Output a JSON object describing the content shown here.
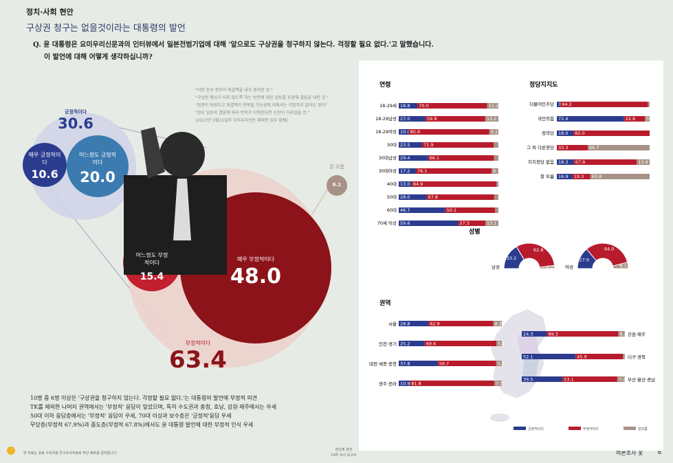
{
  "header": {
    "section": "정치·사회 현안",
    "title": "구상권 청구는 없을것이라는 대통령의 발언",
    "question_prefix": "Q.",
    "question_line1": "윤 대통령은 요미우리신문과의 인터뷰에서 일본전범기업에 대해 '앞으로도 구상권을 청구하지 않는다. 걱정할 필요 없다.'고 말했습니다.",
    "question_line2": "이 발언에 대해 어떻게 생각하십니까?"
  },
  "quote": [
    "\"어떤 한국 정부의 해결책을 내가 생각한 것.\"",
    "\"구상권 행사가 되지 않도록 하는 방안에 대한 검토를 포함해 결론을 내린 것.\"",
    "\"정권이 바뀐다고 해결책이 번복될 가능성에 대해서는 걱정하지 않아도 된다\"",
    "\"정부 입장과 결론에 따라 번복가 이뤄진다면 논란이 가라앉을 것.\"",
    "(2023년 3월15일자 요미우리신문 해외판 일부 발췌)"
  ],
  "bubbles": {
    "positive_label": "긍정적이다",
    "positive_value": "30.6",
    "very_positive_label": "매우 긍정적이다",
    "very_positive_value": "10.6",
    "somewhat_positive_label": "어느정도 긍정적이다",
    "somewhat_positive_value": "20.0",
    "negative_label": "부정적이다",
    "negative_value": "63.4",
    "very_negative_label": "매우 부정적이다",
    "very_negative_value": "48.0",
    "somewhat_negative_label": "어느정도 부정적이다",
    "somewhat_negative_value": "15.4",
    "dont_know_label": "잘 모름",
    "dont_know_value": "6.1"
  },
  "summary": [
    "10명 중 6명 이상은 '구상권을 청구하지 않는다. 걱정할 필요 없다.'는 대통령의 발언에 부정적 의견",
    "TK를 제외한 나머지 권역에서는 '부정적' 응답이 앞섰으며, 특히 수도권과 충청, 호남, 강원·제주에서는 우세",
    "50대 이하 응답층에서는 '부정적' 응답이 우세, 70대 이상과 보수층은 '긍정적'응답 우세",
    "무당층(부정적 67.9%)과 중도층(부정적 67.8%)에서도 윤 대통령 발언에 대한 부정적 인식 우세"
  ],
  "footer": {
    "left": "본 자료는 유료 구독자용 연구조사자료로 무단 배포를 금지합니다",
    "center1": "한신에 관한",
    "center2": "CATI 조사 보고서",
    "right": "여론조사 꽃",
    "page": "6"
  },
  "colors": {
    "positive": "#2b3c8f",
    "negative": "#b81c2c",
    "dont_know": "#a89287",
    "light_blue": "#3b7bb0",
    "dark_red": "#8c1319"
  },
  "chart_data": [
    {
      "type": "bar",
      "title": "연령",
      "stacked": true,
      "categories": [
        "18-29세",
        "18-29남성",
        "18-29여성",
        "30대",
        "30대남성",
        "30대여성",
        "40대",
        "50대",
        "60대",
        "70세 이상"
      ],
      "series": [
        {
          "name": "긍정적이다",
          "values": [
            18.8,
            27.0,
            10.0,
            23.5,
            29.4,
            17.2,
            13.0,
            28.0,
            46.7,
            59.6
          ]
        },
        {
          "name": "부정적이다",
          "values": [
            70.0,
            59.8,
            80.9,
            71.9,
            66.1,
            76.1,
            84.9,
            67.8,
            50.1,
            27.3
          ]
        },
        {
          "name": "잘모름",
          "values": [
            11.2,
            13.2,
            9.1,
            4.6,
            4.5,
            6.7,
            2.1,
            4.2,
            3.2,
            13.1
          ]
        }
      ]
    },
    {
      "type": "bar",
      "title": "정당지지도",
      "stacked": true,
      "categories": [
        "더불어민주당",
        "국민의힘",
        "정의당",
        "그 외 다른정당",
        "지지정당 없음",
        "잘 모름"
      ],
      "series": [
        {
          "name": "긍정적이다",
          "values": [
            3.9,
            72.4,
            18.0,
            0.0,
            18.3,
            16.9
          ]
        },
        {
          "name": "부정적이다",
          "values": [
            94.2,
            22.6,
            82.0,
            33.3,
            67.9,
            19.3
          ]
        },
        {
          "name": "잘모름",
          "values": [
            1.9,
            5.0,
            0.0,
            66.7,
            13.9,
            63.8
          ]
        }
      ]
    },
    {
      "type": "pie",
      "title": "성별",
      "categories": [
        "남성",
        "여성"
      ],
      "series": [
        {
          "name": "긍정적이다",
          "values": [
            33.2,
            27.9
          ]
        },
        {
          "name": "부정적이다",
          "values": [
            62.8,
            64.0
          ]
        },
        {
          "name": "잘모름",
          "values": [
            4.0,
            8.1
          ]
        }
      ]
    },
    {
      "type": "bar",
      "title": "권역",
      "stacked": true,
      "categories": [
        "서울",
        "인천·경기",
        "대전·세종·충청",
        "광주·전라",
        "강원·제주",
        "대구·경북",
        "부산·울산·경남"
      ],
      "series": [
        {
          "name": "긍정적이다",
          "values": [
            28.8,
            25.2,
            37.8,
            10.9,
            24.3,
            52.1,
            39.5
          ]
        },
        {
          "name": "부정적이다",
          "values": [
            62.9,
            69.6,
            56.7,
            81.8,
            69.3,
            45.9,
            53.1
          ]
        },
        {
          "name": "잘모름",
          "values": [
            8.3,
            5.2,
            5.5,
            7.3,
            6.4,
            2.0,
            7.4
          ]
        }
      ]
    }
  ],
  "legend": [
    "긍정적이다",
    "부정적이다",
    "잘모름"
  ]
}
